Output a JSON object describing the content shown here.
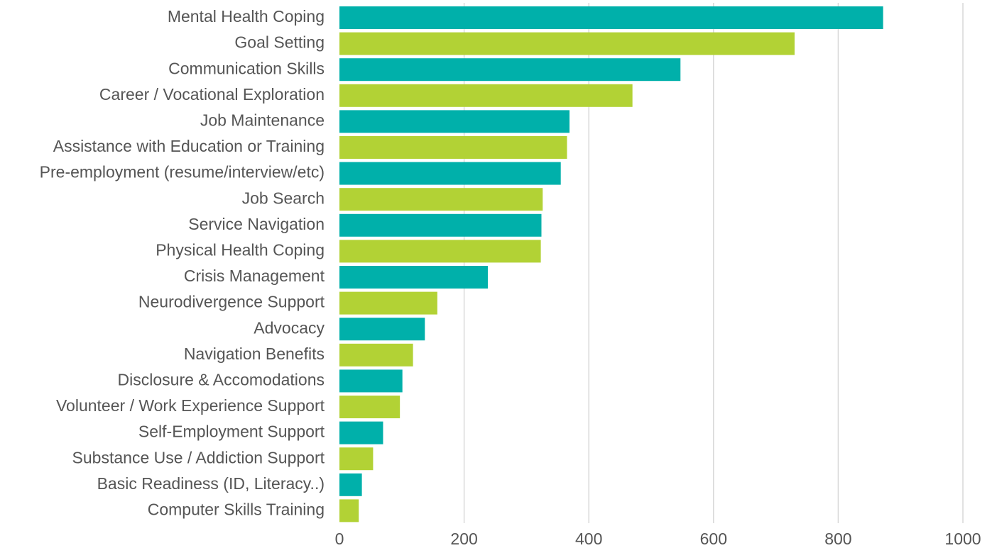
{
  "chart_data": {
    "type": "bar",
    "orientation": "horizontal",
    "title": "",
    "xlabel": "",
    "ylabel": "",
    "xlim": [
      0,
      1000
    ],
    "xticks": [
      0,
      200,
      400,
      600,
      800,
      1000
    ],
    "grid": true,
    "colors": [
      "#00b0aa",
      "#b2d235"
    ],
    "categories": [
      "Mental Health Coping",
      "Goal Setting",
      "Communication Skills",
      "Career / Vocational Exploration",
      "Job Maintenance",
      "Assistance with Education or Training",
      "Pre-employment (resume/interview/etc)",
      "Job Search",
      "Service Navigation",
      "Physical Health Coping",
      "Crisis Management",
      "Neurodivergence Support",
      "Advocacy",
      "Navigation Benefits",
      "Disclosure & Accomodations",
      "Volunteer / Work Experience Support",
      "Self-Employment Support",
      "Substance Use / Addiction Support",
      "Basic Readiness (ID, Literacy..)",
      "Computer Skills Training"
    ],
    "values": [
      872,
      730,
      547,
      470,
      369,
      365,
      355,
      326,
      324,
      323,
      238,
      157,
      137,
      118,
      101,
      97,
      70,
      54,
      36,
      31
    ]
  }
}
